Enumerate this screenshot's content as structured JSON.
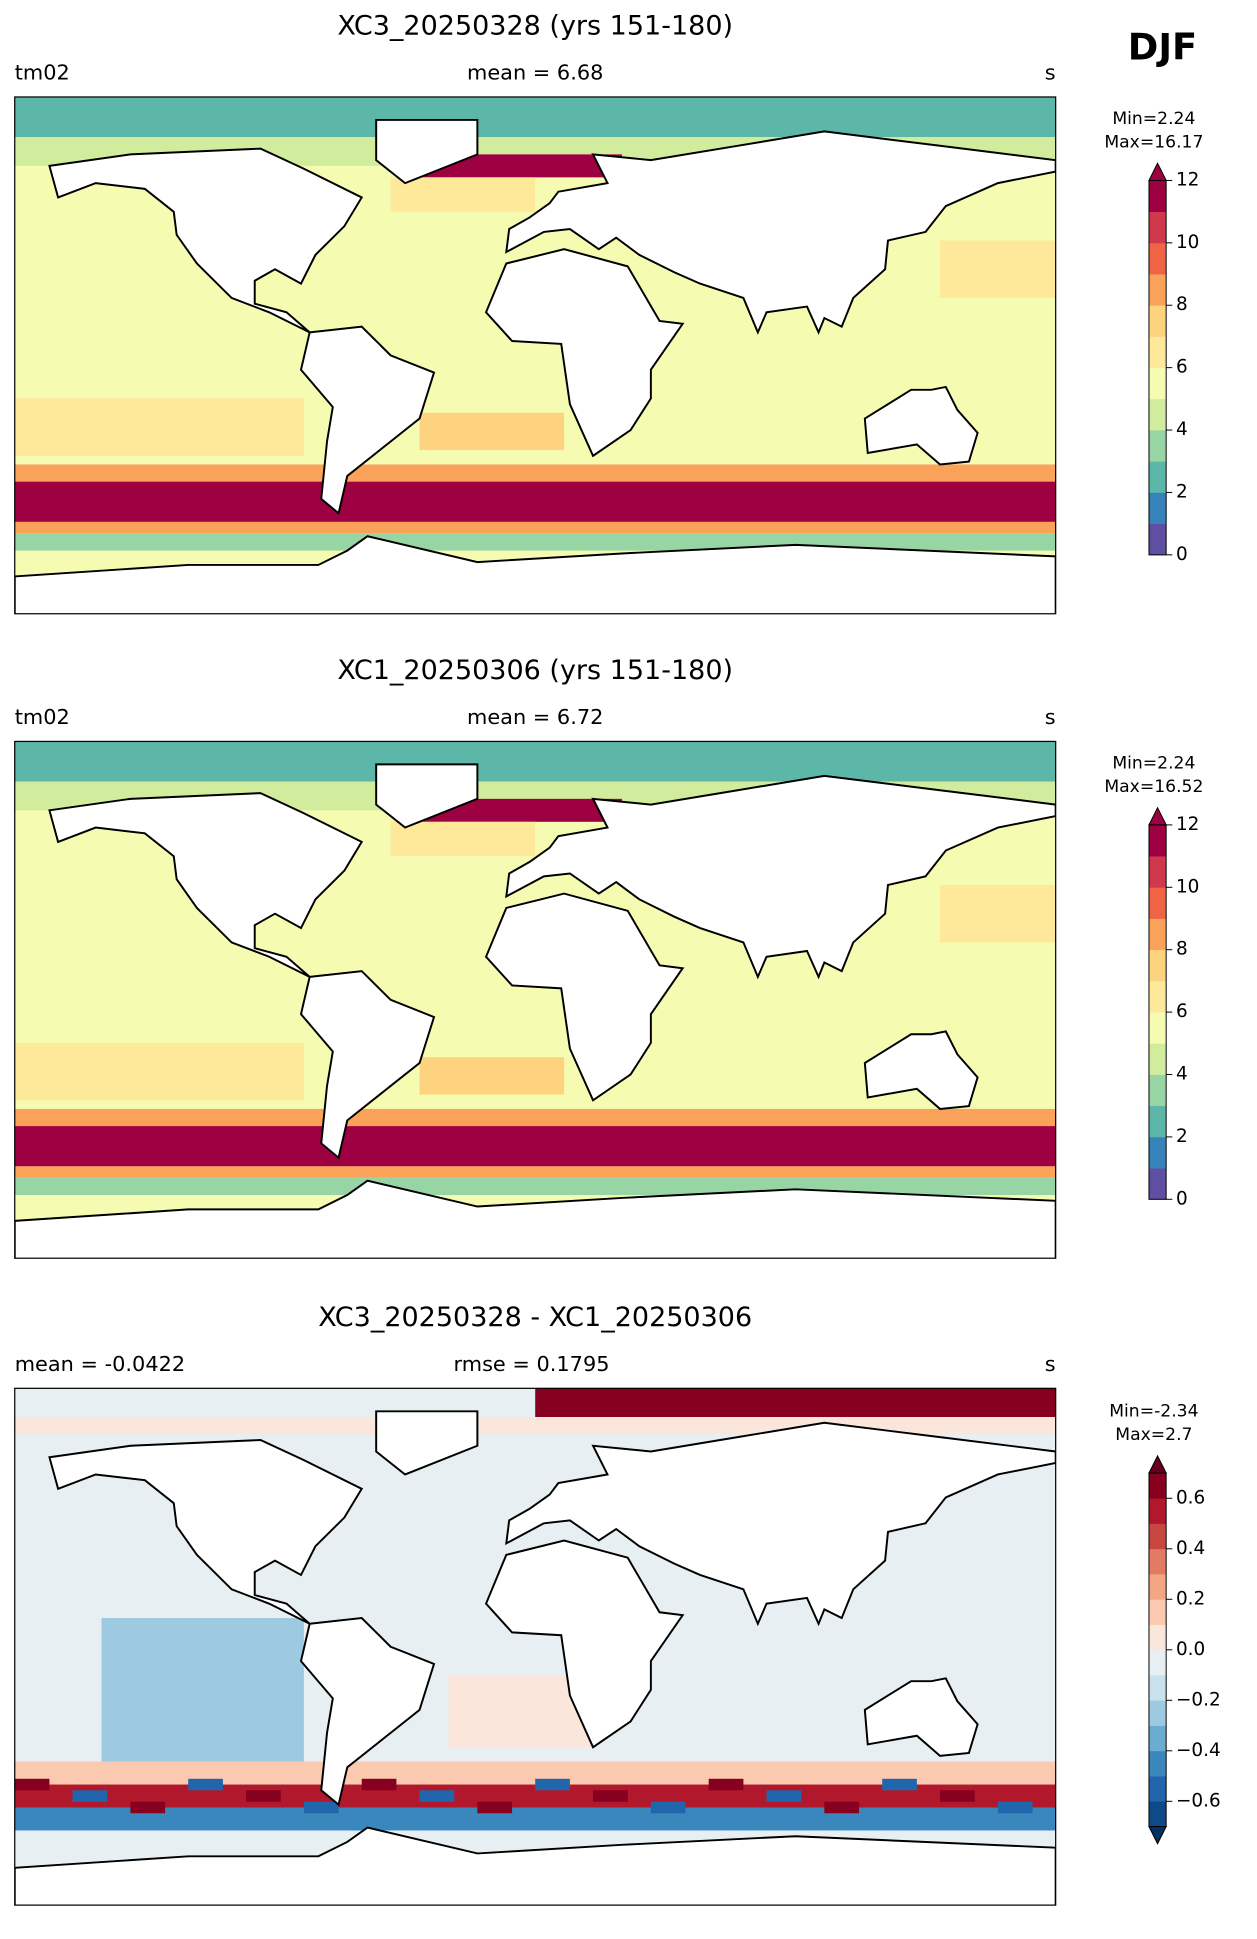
{
  "season_label": "DJF",
  "chart_data": [
    {
      "type": "contour-map",
      "title": "XC3_20250328 (yrs 151-180)",
      "left_label": "tm02",
      "center_label": "mean = 6.68",
      "right_label": "s",
      "min_label": "Min=2.24",
      "max_label": "Max=16.17",
      "clim": [
        0,
        12
      ],
      "colors": [
        "#5e4fa2",
        "#3683bb",
        "#5db7a9",
        "#98d5a4",
        "#d1ec9c",
        "#f6fbb2",
        "#fee99a",
        "#fdd380",
        "#faa15a",
        "#ee6445",
        "#d0384e",
        "#9e0142"
      ],
      "over_color": "#9e0142",
      "cticks": [
        0,
        2,
        4,
        6,
        8,
        10,
        12
      ]
    },
    {
      "type": "contour-map",
      "title": "XC1_20250306 (yrs 151-180)",
      "left_label": "tm02",
      "center_label": "mean = 6.72",
      "right_label": "s",
      "min_label": "Min=2.24",
      "max_label": "Max=16.52",
      "clim": [
        0,
        12
      ],
      "colors": [
        "#5e4fa2",
        "#3683bb",
        "#5db7a9",
        "#98d5a4",
        "#d1ec9c",
        "#f6fbb2",
        "#fee99a",
        "#fdd380",
        "#faa15a",
        "#ee6445",
        "#d0384e",
        "#9e0142"
      ],
      "over_color": "#9e0142",
      "cticks": [
        0,
        2,
        4,
        6,
        8,
        10,
        12
      ]
    },
    {
      "type": "contour-map",
      "title": "XC3_20250328 - XC1_20250306",
      "left_label": "mean = -0.0422",
      "center_label": "rmse = 0.1795",
      "right_label": "s",
      "min_label": "Min=-2.34",
      "max_label": "Max=2.7",
      "clim": [
        -0.7,
        0.7
      ],
      "colors": [
        "#0d4a87",
        "#2166ac",
        "#3a87bd",
        "#6bacd1",
        "#9dcae1",
        "#c9e0ed",
        "#e8eff3",
        "#fbe6dc",
        "#fac9b0",
        "#f4a582",
        "#e27b62",
        "#c94741",
        "#b2182b",
        "#87001f"
      ],
      "under_color": "#053061",
      "over_color": "#67001f",
      "cticks": [
        {
          "value": -0.6,
          "label": "−0.6"
        },
        {
          "value": -0.4,
          "label": "−0.4"
        },
        {
          "value": -0.2,
          "label": "−0.2"
        },
        {
          "value": 0,
          "label": "0.0"
        },
        0.2,
        0.4,
        0.6
      ]
    }
  ]
}
